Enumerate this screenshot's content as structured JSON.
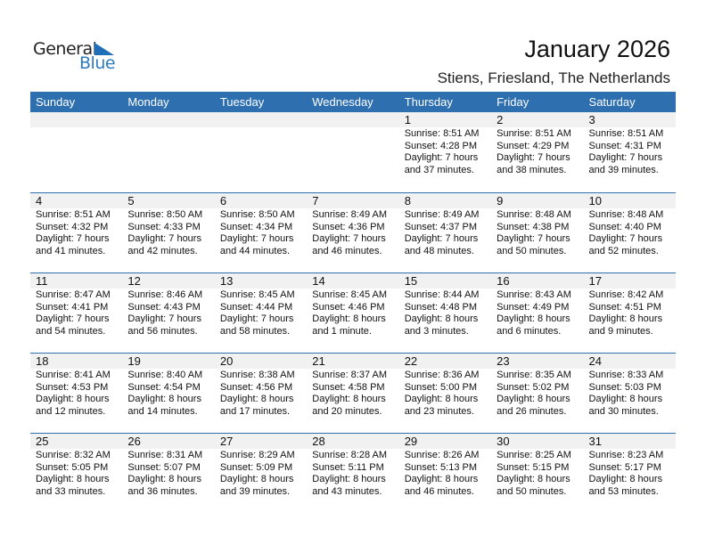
{
  "logo": {
    "line1": "General",
    "line2": "Blue"
  },
  "title": "January 2026",
  "subtitle": "Stiens, Friesland, The Netherlands",
  "days": [
    "Sunday",
    "Monday",
    "Tuesday",
    "Wednesday",
    "Thursday",
    "Friday",
    "Saturday"
  ],
  "colors": {
    "header": "#2e6fb0",
    "day_number_bg": "#f1f1f1"
  },
  "weeks": [
    [
      null,
      null,
      null,
      null,
      {
        "day": "1",
        "sunrise": "Sunrise: 8:51 AM",
        "sunset": "Sunset: 4:28 PM",
        "daylight1": "Daylight: 7 hours",
        "daylight2": "and 37 minutes."
      },
      {
        "day": "2",
        "sunrise": "Sunrise: 8:51 AM",
        "sunset": "Sunset: 4:29 PM",
        "daylight1": "Daylight: 7 hours",
        "daylight2": "and 38 minutes."
      },
      {
        "day": "3",
        "sunrise": "Sunrise: 8:51 AM",
        "sunset": "Sunset: 4:31 PM",
        "daylight1": "Daylight: 7 hours",
        "daylight2": "and 39 minutes."
      }
    ],
    [
      {
        "day": "4",
        "sunrise": "Sunrise: 8:51 AM",
        "sunset": "Sunset: 4:32 PM",
        "daylight1": "Daylight: 7 hours",
        "daylight2": "and 41 minutes."
      },
      {
        "day": "5",
        "sunrise": "Sunrise: 8:50 AM",
        "sunset": "Sunset: 4:33 PM",
        "daylight1": "Daylight: 7 hours",
        "daylight2": "and 42 minutes."
      },
      {
        "day": "6",
        "sunrise": "Sunrise: 8:50 AM",
        "sunset": "Sunset: 4:34 PM",
        "daylight1": "Daylight: 7 hours",
        "daylight2": "and 44 minutes."
      },
      {
        "day": "7",
        "sunrise": "Sunrise: 8:49 AM",
        "sunset": "Sunset: 4:36 PM",
        "daylight1": "Daylight: 7 hours",
        "daylight2": "and 46 minutes."
      },
      {
        "day": "8",
        "sunrise": "Sunrise: 8:49 AM",
        "sunset": "Sunset: 4:37 PM",
        "daylight1": "Daylight: 7 hours",
        "daylight2": "and 48 minutes."
      },
      {
        "day": "9",
        "sunrise": "Sunrise: 8:48 AM",
        "sunset": "Sunset: 4:38 PM",
        "daylight1": "Daylight: 7 hours",
        "daylight2": "and 50 minutes."
      },
      {
        "day": "10",
        "sunrise": "Sunrise: 8:48 AM",
        "sunset": "Sunset: 4:40 PM",
        "daylight1": "Daylight: 7 hours",
        "daylight2": "and 52 minutes."
      }
    ],
    [
      {
        "day": "11",
        "sunrise": "Sunrise: 8:47 AM",
        "sunset": "Sunset: 4:41 PM",
        "daylight1": "Daylight: 7 hours",
        "daylight2": "and 54 minutes."
      },
      {
        "day": "12",
        "sunrise": "Sunrise: 8:46 AM",
        "sunset": "Sunset: 4:43 PM",
        "daylight1": "Daylight: 7 hours",
        "daylight2": "and 56 minutes."
      },
      {
        "day": "13",
        "sunrise": "Sunrise: 8:45 AM",
        "sunset": "Sunset: 4:44 PM",
        "daylight1": "Daylight: 7 hours",
        "daylight2": "and 58 minutes."
      },
      {
        "day": "14",
        "sunrise": "Sunrise: 8:45 AM",
        "sunset": "Sunset: 4:46 PM",
        "daylight1": "Daylight: 8 hours",
        "daylight2": "and 1 minute."
      },
      {
        "day": "15",
        "sunrise": "Sunrise: 8:44 AM",
        "sunset": "Sunset: 4:48 PM",
        "daylight1": "Daylight: 8 hours",
        "daylight2": "and 3 minutes."
      },
      {
        "day": "16",
        "sunrise": "Sunrise: 8:43 AM",
        "sunset": "Sunset: 4:49 PM",
        "daylight1": "Daylight: 8 hours",
        "daylight2": "and 6 minutes."
      },
      {
        "day": "17",
        "sunrise": "Sunrise: 8:42 AM",
        "sunset": "Sunset: 4:51 PM",
        "daylight1": "Daylight: 8 hours",
        "daylight2": "and 9 minutes."
      }
    ],
    [
      {
        "day": "18",
        "sunrise": "Sunrise: 8:41 AM",
        "sunset": "Sunset: 4:53 PM",
        "daylight1": "Daylight: 8 hours",
        "daylight2": "and 12 minutes."
      },
      {
        "day": "19",
        "sunrise": "Sunrise: 8:40 AM",
        "sunset": "Sunset: 4:54 PM",
        "daylight1": "Daylight: 8 hours",
        "daylight2": "and 14 minutes."
      },
      {
        "day": "20",
        "sunrise": "Sunrise: 8:38 AM",
        "sunset": "Sunset: 4:56 PM",
        "daylight1": "Daylight: 8 hours",
        "daylight2": "and 17 minutes."
      },
      {
        "day": "21",
        "sunrise": "Sunrise: 8:37 AM",
        "sunset": "Sunset: 4:58 PM",
        "daylight1": "Daylight: 8 hours",
        "daylight2": "and 20 minutes."
      },
      {
        "day": "22",
        "sunrise": "Sunrise: 8:36 AM",
        "sunset": "Sunset: 5:00 PM",
        "daylight1": "Daylight: 8 hours",
        "daylight2": "and 23 minutes."
      },
      {
        "day": "23",
        "sunrise": "Sunrise: 8:35 AM",
        "sunset": "Sunset: 5:02 PM",
        "daylight1": "Daylight: 8 hours",
        "daylight2": "and 26 minutes."
      },
      {
        "day": "24",
        "sunrise": "Sunrise: 8:33 AM",
        "sunset": "Sunset: 5:03 PM",
        "daylight1": "Daylight: 8 hours",
        "daylight2": "and 30 minutes."
      }
    ],
    [
      {
        "day": "25",
        "sunrise": "Sunrise: 8:32 AM",
        "sunset": "Sunset: 5:05 PM",
        "daylight1": "Daylight: 8 hours",
        "daylight2": "and 33 minutes."
      },
      {
        "day": "26",
        "sunrise": "Sunrise: 8:31 AM",
        "sunset": "Sunset: 5:07 PM",
        "daylight1": "Daylight: 8 hours",
        "daylight2": "and 36 minutes."
      },
      {
        "day": "27",
        "sunrise": "Sunrise: 8:29 AM",
        "sunset": "Sunset: 5:09 PM",
        "daylight1": "Daylight: 8 hours",
        "daylight2": "and 39 minutes."
      },
      {
        "day": "28",
        "sunrise": "Sunrise: 8:28 AM",
        "sunset": "Sunset: 5:11 PM",
        "daylight1": "Daylight: 8 hours",
        "daylight2": "and 43 minutes."
      },
      {
        "day": "29",
        "sunrise": "Sunrise: 8:26 AM",
        "sunset": "Sunset: 5:13 PM",
        "daylight1": "Daylight: 8 hours",
        "daylight2": "and 46 minutes."
      },
      {
        "day": "30",
        "sunrise": "Sunrise: 8:25 AM",
        "sunset": "Sunset: 5:15 PM",
        "daylight1": "Daylight: 8 hours",
        "daylight2": "and 50 minutes."
      },
      {
        "day": "31",
        "sunrise": "Sunrise: 8:23 AM",
        "sunset": "Sunset: 5:17 PM",
        "daylight1": "Daylight: 8 hours",
        "daylight2": "and 53 minutes."
      }
    ]
  ]
}
